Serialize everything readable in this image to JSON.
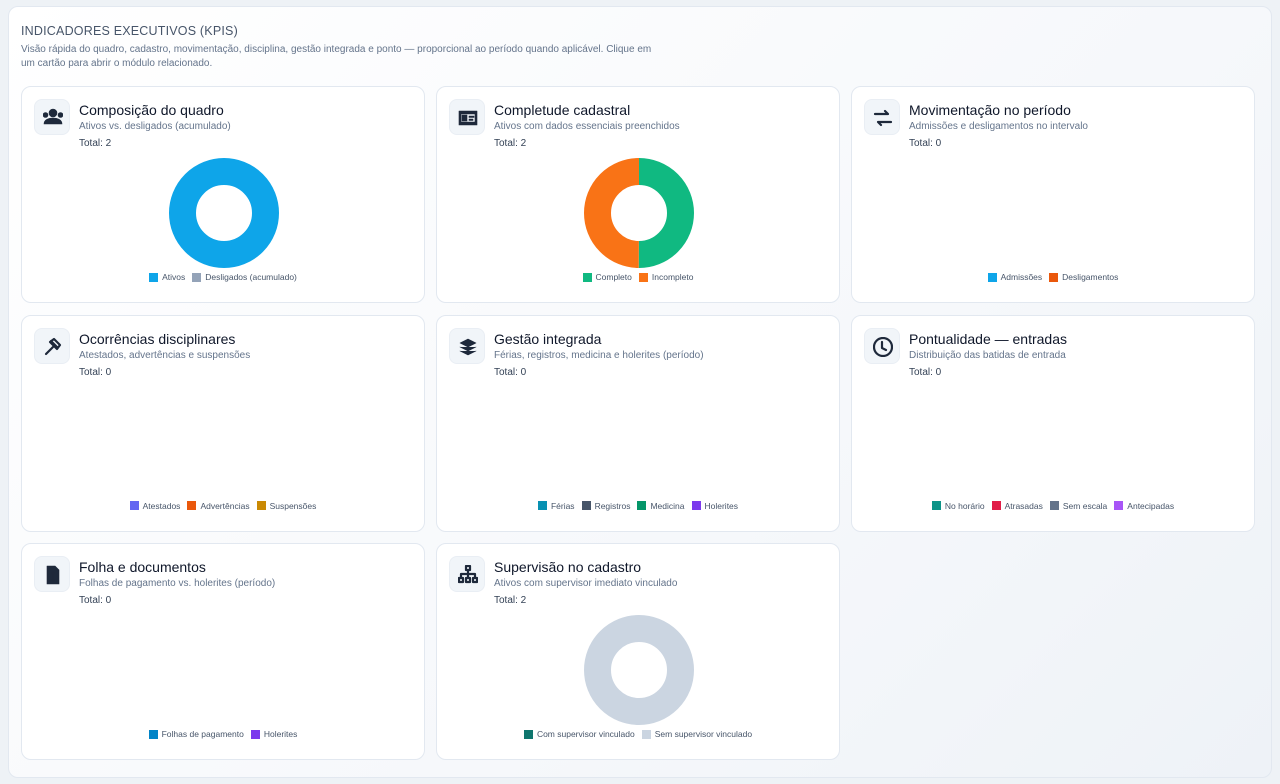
{
  "header": {
    "title": "INDICADORES EXECUTIVOS (KPIS)",
    "description": "Visão rápida do quadro, cadastro, movimentação, disciplina, gestão integrada e ponto — proporcional ao período quando aplicável. Clique em um cartão para abrir o módulo relacionado."
  },
  "cards": [
    {
      "title": "Composição do quadro",
      "subtitle": "Ativos vs. desligados (acumulado)",
      "total": "Total: 2",
      "legend": [
        {
          "name": "Ativos",
          "color": "#0ea5e9",
          "value": 2
        },
        {
          "name": "Desligados (acumulado)",
          "color": "#94a3b8",
          "value": 0
        }
      ]
    },
    {
      "title": "Completude cadastral",
      "subtitle": "Ativos com dados essenciais preenchidos",
      "total": "Total: 2",
      "legend": [
        {
          "name": "Completo",
          "color": "#10b981",
          "value": 1
        },
        {
          "name": "Incompleto",
          "color": "#f97316",
          "value": 1
        }
      ]
    },
    {
      "title": "Movimentação no período",
      "subtitle": "Admissões e desligamentos no intervalo",
      "total": "Total: 0",
      "legend": [
        {
          "name": "Admissões",
          "color": "#0ea5e9",
          "value": 0
        },
        {
          "name": "Desligamentos",
          "color": "#ea580c",
          "value": 0
        }
      ]
    },
    {
      "title": "Ocorrências disciplinares",
      "subtitle": "Atestados, advertências e suspensões",
      "total": "Total: 0",
      "legend": [
        {
          "name": "Atestados",
          "color": "#6366f1",
          "value": 0
        },
        {
          "name": "Advertências",
          "color": "#ea580c",
          "value": 0
        },
        {
          "name": "Suspensões",
          "color": "#ca8a04",
          "value": 0
        }
      ]
    },
    {
      "title": "Gestão integrada",
      "subtitle": "Férias, registros, medicina e holerites (período)",
      "total": "Total: 0",
      "legend": [
        {
          "name": "Férias",
          "color": "#0891b2",
          "value": 0
        },
        {
          "name": "Registros",
          "color": "#475569",
          "value": 0
        },
        {
          "name": "Medicina",
          "color": "#059669",
          "value": 0
        },
        {
          "name": "Holerites",
          "color": "#7c3aed",
          "value": 0
        }
      ]
    },
    {
      "title": "Pontualidade — entradas",
      "subtitle": "Distribuição das batidas de entrada",
      "total": "Total: 0",
      "legend": [
        {
          "name": "No horário",
          "color": "#0d9488",
          "value": 0
        },
        {
          "name": "Atrasadas",
          "color": "#e11d48",
          "value": 0
        },
        {
          "name": "Sem escala",
          "color": "#64748b",
          "value": 0
        },
        {
          "name": "Antecipadas",
          "color": "#a855f7",
          "value": 0
        }
      ]
    },
    {
      "title": "Folha e documentos",
      "subtitle": "Folhas de pagamento vs. holerites (período)",
      "total": "Total: 0",
      "legend": [
        {
          "name": "Folhas de pagamento",
          "color": "#0284c7",
          "value": 0
        },
        {
          "name": "Holerites",
          "color": "#7c3aed",
          "value": 0
        }
      ]
    },
    {
      "title": "Supervisão no cadastro",
      "subtitle": "Ativos com supervisor imediato vinculado",
      "total": "Total: 2",
      "legend": [
        {
          "name": "Com supervisor vinculado",
          "color": "#0f766e",
          "value": 0
        },
        {
          "name": "Sem supervisor vinculado",
          "color": "#cbd5e1",
          "value": 2
        }
      ]
    }
  ]
}
